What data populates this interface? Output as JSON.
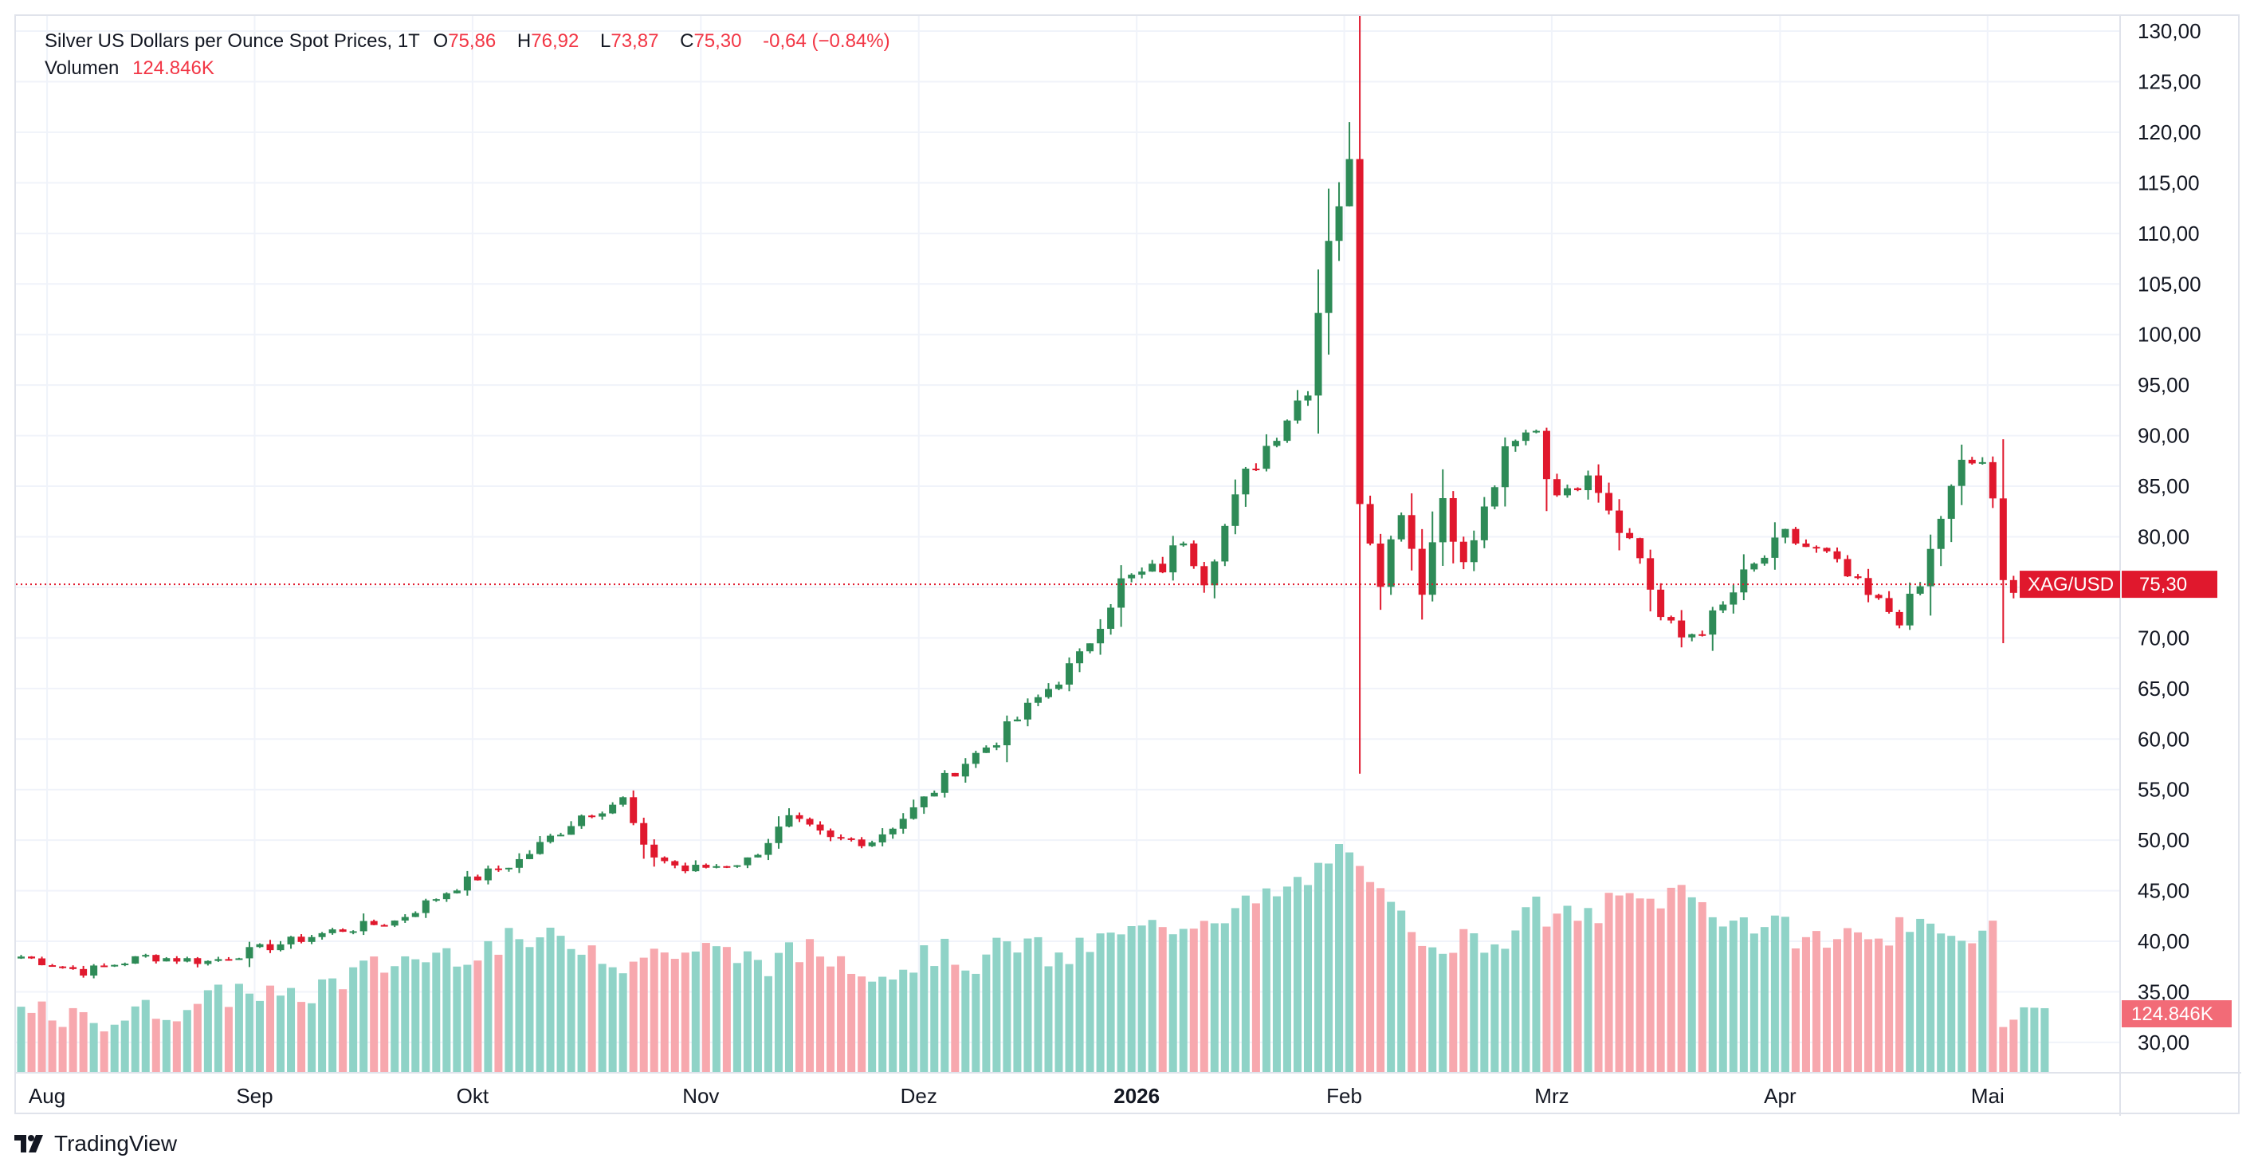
{
  "legend": {
    "title": "Silver US Dollars per Ounce Spot Prices, 1T",
    "open_label": "O",
    "open": "75,86",
    "high_label": "H",
    "high": "76,92",
    "low_label": "L",
    "low": "73,87",
    "close_label": "C",
    "close": "75,30",
    "change": "-0,64 (−0.84%)",
    "volume_label": "Volumen",
    "volume": "124.846K"
  },
  "price_tag": {
    "symbol": "XAG/USD",
    "value": "75,30"
  },
  "volume_tag": "124.846K",
  "footer": {
    "brand": "TradingView",
    "logo_icon": "tradingview-logo-icon"
  },
  "colors": {
    "up": "#26a69a",
    "down": "#ef5350",
    "candle_up": "#2e8b57",
    "candle_down": "#e0182d",
    "vol_up": "#8fd3c7",
    "vol_down": "#f7a8ae",
    "grid": "#f0f3fa"
  },
  "chart_data": {
    "type": "candlestick",
    "title": "Silver US Dollars per Ounce Spot Prices, 1T",
    "symbol": "XAG/USD",
    "ylim": [
      27.0,
      131.5
    ],
    "y_ticks": [
      "30,00",
      "35,00",
      "40,00",
      "45,00",
      "50,00",
      "55,00",
      "60,00",
      "65,00",
      "70,00",
      "75,00",
      "80,00",
      "85,00",
      "90,00",
      "95,00",
      "100,00",
      "105,00",
      "110,00",
      "115,00",
      "120,00",
      "125,00",
      "130,00"
    ],
    "x_ticks": [
      {
        "label": "Aug",
        "index": 3,
        "bold": false
      },
      {
        "label": "Sep",
        "index": 23,
        "bold": false
      },
      {
        "label": "Okt",
        "index": 44,
        "bold": false
      },
      {
        "label": "Nov",
        "index": 66,
        "bold": false
      },
      {
        "label": "Dez",
        "index": 87,
        "bold": false
      },
      {
        "label": "2026",
        "index": 108,
        "bold": true
      },
      {
        "label": "Feb",
        "index": 128,
        "bold": false
      },
      {
        "label": "Mrz",
        "index": 148,
        "bold": false
      },
      {
        "label": "Apr",
        "index": 170,
        "bold": false
      },
      {
        "label": "Mai",
        "index": 190,
        "bold": false
      }
    ],
    "last_close": 75.3,
    "ohlc_anchors": [
      [
        0,
        38.5
      ],
      [
        6,
        37.0
      ],
      [
        12,
        38.5
      ],
      [
        18,
        38.0
      ],
      [
        24,
        39.5
      ],
      [
        30,
        41.0
      ],
      [
        36,
        42.0
      ],
      [
        42,
        45.5
      ],
      [
        48,
        48.0
      ],
      [
        54,
        52.5
      ],
      [
        58,
        54.0
      ],
      [
        60,
        49.0
      ],
      [
        64,
        47.0
      ],
      [
        70,
        48.0
      ],
      [
        74,
        52.0
      ],
      [
        78,
        50.0
      ],
      [
        82,
        50.0
      ],
      [
        86,
        53.0
      ],
      [
        90,
        57.0
      ],
      [
        94,
        60.0
      ],
      [
        98,
        64.0
      ],
      [
        102,
        68.0
      ],
      [
        106,
        75.5
      ],
      [
        110,
        77.0
      ],
      [
        112,
        80.0
      ],
      [
        114,
        76.0
      ],
      [
        118,
        86.0
      ],
      [
        122,
        92.0
      ],
      [
        124,
        95.0
      ],
      [
        126,
        110.0
      ],
      [
        128,
        116.5
      ],
      [
        129,
        84.0
      ],
      [
        131,
        76.0
      ],
      [
        133,
        83.0
      ],
      [
        135,
        75.0
      ],
      [
        137,
        84.0
      ],
      [
        139,
        77.0
      ],
      [
        143,
        88.0
      ],
      [
        146,
        91.0
      ],
      [
        147,
        86.0
      ],
      [
        149,
        84.0
      ],
      [
        151,
        87.0
      ],
      [
        153,
        83.0
      ],
      [
        156,
        78.0
      ],
      [
        158,
        72.0
      ],
      [
        160,
        70.0
      ],
      [
        162,
        71.0
      ],
      [
        164,
        73.0
      ],
      [
        166,
        76.0
      ],
      [
        168,
        78.0
      ],
      [
        170,
        80.0
      ],
      [
        172,
        79.0
      ],
      [
        174,
        78.0
      ],
      [
        176,
        76.0
      ],
      [
        178,
        74.0
      ],
      [
        181,
        72.0
      ],
      [
        183,
        75.0
      ],
      [
        185,
        82.0
      ],
      [
        187,
        87.0
      ],
      [
        189,
        87.5
      ],
      [
        190,
        83.0
      ],
      [
        191,
        75.3
      ]
    ],
    "volume_anchors": [
      [
        0,
        33
      ],
      [
        6,
        32
      ],
      [
        12,
        33
      ],
      [
        18,
        34
      ],
      [
        22,
        35.5
      ],
      [
        26,
        34
      ],
      [
        30,
        36
      ],
      [
        36,
        38
      ],
      [
        42,
        39
      ],
      [
        48,
        40
      ],
      [
        54,
        40
      ],
      [
        58,
        38
      ],
      [
        62,
        39
      ],
      [
        66,
        39
      ],
      [
        72,
        38
      ],
      [
        76,
        39
      ],
      [
        80,
        38
      ],
      [
        84,
        37
      ],
      [
        88,
        39
      ],
      [
        92,
        38
      ],
      [
        96,
        40
      ],
      [
        100,
        38
      ],
      [
        104,
        40
      ],
      [
        108,
        41
      ],
      [
        112,
        42
      ],
      [
        116,
        43
      ],
      [
        120,
        44
      ],
      [
        124,
        46
      ],
      [
        126,
        48
      ],
      [
        128,
        50
      ],
      [
        129,
        46
      ],
      [
        131,
        44
      ],
      [
        134,
        41
      ],
      [
        138,
        40
      ],
      [
        142,
        40
      ],
      [
        146,
        43
      ],
      [
        150,
        42
      ],
      [
        154,
        44
      ],
      [
        157,
        44
      ],
      [
        160,
        45
      ],
      [
        163,
        43
      ],
      [
        166,
        42
      ],
      [
        170,
        41
      ],
      [
        174,
        40
      ],
      [
        178,
        41
      ],
      [
        182,
        41
      ],
      [
        186,
        40
      ],
      [
        190,
        42
      ],
      [
        191,
        33
      ]
    ],
    "volume_scale_note": "volume bars plotted against right price axis range",
    "volume_labels": {
      "current": "124.846K"
    }
  }
}
